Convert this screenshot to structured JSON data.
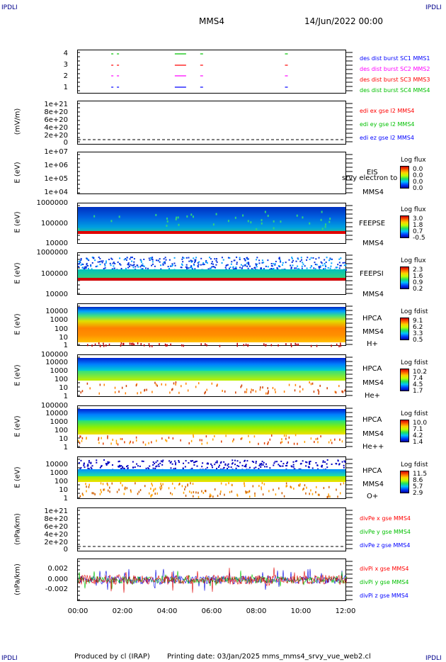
{
  "corners": {
    "tl": "IPDLI",
    "tr": "IPDLI",
    "bl": "IPDLI",
    "br": "IPDLI"
  },
  "header": {
    "spacecraft": "MMS4",
    "date": "14/Jun/2022 00:00"
  },
  "footer": {
    "produced": "Produced by cl (IRAP)",
    "printing": "Printing date: 03/Jan/2025",
    "file": "mms_mms4_srvy_vue_web2.cl"
  },
  "x_axis": {
    "ticks": [
      "00:00",
      "02:00",
      "04:00",
      "06:00",
      "08:00",
      "10:00",
      "12:00"
    ]
  },
  "colors": {
    "blue": "#0000ff",
    "magenta": "#ff00ff",
    "red": "#ff0000",
    "green": "#00c000"
  },
  "chart_data": [
    {
      "type": "scatter",
      "id": "burst",
      "yticks": [
        "1",
        "2",
        "3",
        "4"
      ],
      "legend": [
        "des dist burst SC1 MMS1",
        "des dist burst SC2 MMS2",
        "des dist burst SC3 MMS3",
        "des dist burst SC4 MMS4"
      ],
      "burst_times_hours": [
        1.75,
        4.6,
        5.55,
        9.35
      ]
    },
    {
      "type": "line",
      "id": "edi",
      "ylabel": "(mV/m)",
      "yticks": [
        "1e+21",
        "8e+20",
        "6e+20",
        "4e+20",
        "2e+20",
        "0"
      ],
      "legend": [
        "edi ex gse l2 MMS4",
        "edi ey gse l2 MMS4",
        "edi ez gse l2 MMS4"
      ]
    },
    {
      "type": "heatmap",
      "id": "eis",
      "ylabel": "E (eV)",
      "yticks": [
        "1e+07",
        "1e+06",
        "1e+05",
        "1e+04"
      ],
      "labels": [
        "EIS",
        "srvy electron to",
        "MMS4"
      ],
      "colorbar_title": "Log flux",
      "colorbar": [
        "0.0",
        "0.0",
        "0.0",
        "0.0"
      ]
    },
    {
      "type": "heatmap",
      "id": "feepse",
      "ylabel": "E (eV)",
      "yticks": [
        "1000000",
        "100000",
        "10000"
      ],
      "labels": [
        "FEEPSE",
        "MMS4"
      ],
      "colorbar_title": "Log flux",
      "colorbar": [
        "3.0",
        "1.8",
        "0.7",
        "-0.5"
      ]
    },
    {
      "type": "heatmap",
      "id": "feepsi",
      "ylabel": "E (eV)",
      "yticks": [
        "1000000",
        "100000",
        "10000"
      ],
      "labels": [
        "FEEPSI",
        "MMS4"
      ],
      "colorbar_title": "Log flux",
      "colorbar": [
        "2.3",
        "1.6",
        "0.9",
        "0.2"
      ]
    },
    {
      "type": "heatmap",
      "id": "hpca_h",
      "ylabel": "E (eV)",
      "yticks": [
        "10000",
        "1000",
        "100",
        "10",
        "1"
      ],
      "labels": [
        "HPCA",
        "MMS4",
        "H+"
      ],
      "colorbar_title": "Log fdist",
      "colorbar": [
        "9.1",
        "6.2",
        "3.3",
        "0.5"
      ]
    },
    {
      "type": "heatmap",
      "id": "hpca_he",
      "ylabel": "E (eV)",
      "yticks": [
        "100000",
        "10000",
        "1000",
        "100",
        "10",
        "1"
      ],
      "labels": [
        "HPCA",
        "MMS4",
        "He+"
      ],
      "colorbar_title": "Log fdist",
      "colorbar": [
        "10.2",
        "7.4",
        "4.5",
        "1.7"
      ]
    },
    {
      "type": "heatmap",
      "id": "hpca_hepp",
      "ylabel": "E (eV)",
      "yticks": [
        "100000",
        "10000",
        "1000",
        "100",
        "10",
        "1"
      ],
      "labels": [
        "HPCA",
        "MMS4",
        "He++"
      ],
      "colorbar_title": "Log fdist",
      "colorbar": [
        "10.0",
        "7.1",
        "4.2",
        "1.4"
      ]
    },
    {
      "type": "heatmap",
      "id": "hpca_o",
      "ylabel": "E (eV)",
      "yticks": [
        "10000",
        "1000",
        "100",
        "10",
        "1"
      ],
      "labels": [
        "HPCA",
        "MMS4",
        "O+"
      ],
      "colorbar_title": "Log fdist",
      "colorbar": [
        "11.5",
        "8.6",
        "5.7",
        "2.9"
      ]
    },
    {
      "type": "line",
      "id": "divpe",
      "ylabel": "(nPa/km)",
      "yticks": [
        "1e+21",
        "8e+20",
        "6e+20",
        "4e+20",
        "2e+20",
        "0"
      ],
      "legend": [
        "divPe x gse MMS4",
        "divPe y gse MMS4",
        "divPe z gse MMS4"
      ]
    },
    {
      "type": "line",
      "id": "divpi",
      "ylabel": "(nPa/km)",
      "yticks": [
        "0.002",
        "0.000",
        "-0.002"
      ],
      "ylim": [
        -0.003,
        0.003
      ],
      "legend": [
        "divPi x gse MMS4",
        "divPi y gse MMS4",
        "divPi z gse MMS4"
      ]
    }
  ]
}
